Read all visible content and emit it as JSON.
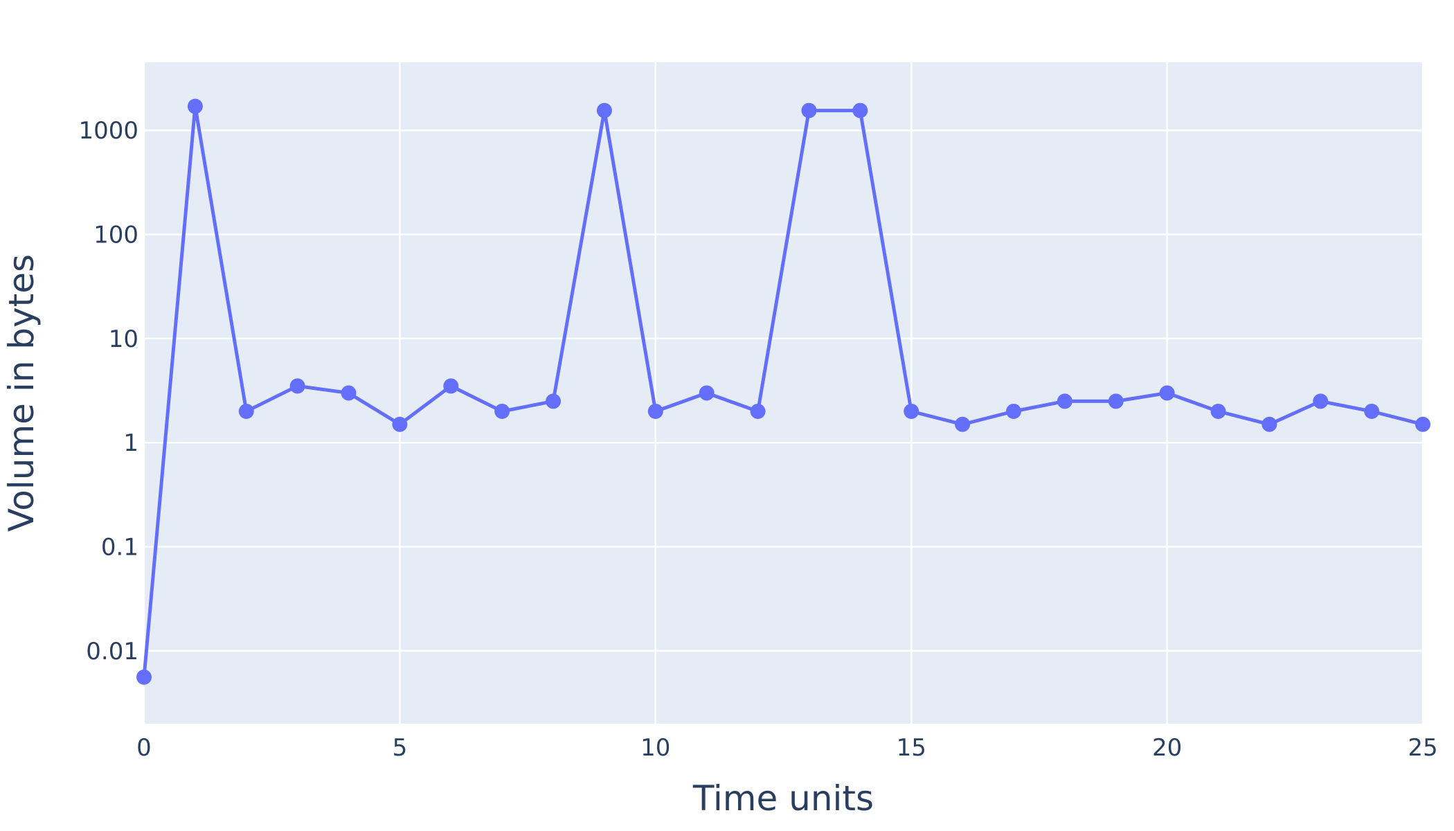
{
  "chart_data": {
    "type": "line",
    "mode": "lines+markers",
    "title": "",
    "xlabel": "Time units",
    "ylabel": "Volume in bytes",
    "x_scale": "linear",
    "y_scale": "log",
    "xlim": [
      0,
      25
    ],
    "ylim": [
      0.002,
      4500
    ],
    "x_ticks": [
      0,
      5,
      10,
      15,
      20,
      25
    ],
    "x_tick_labels": [
      "0",
      "5",
      "10",
      "15",
      "20",
      "25"
    ],
    "y_ticks": [
      0.01,
      0.1,
      1,
      10,
      100,
      1000
    ],
    "y_tick_labels": [
      "0.01",
      "0.1",
      "1",
      "10",
      "100",
      "1000"
    ],
    "grid": true,
    "legend": "none",
    "colors": {
      "plot_bg": "#e5ecf6",
      "grid": "#ffffff",
      "line": "#636efa",
      "text": "#2a3f5f"
    },
    "series": [
      {
        "x": [
          0,
          1,
          2,
          3,
          4,
          5,
          6,
          7,
          8,
          9,
          10,
          11,
          12,
          13,
          14,
          15,
          16,
          17,
          18,
          19,
          20,
          21,
          22,
          23,
          24,
          25
        ],
        "y": [
          0.0056,
          1700,
          2,
          3.5,
          3,
          1.5,
          3.5,
          2,
          2.5,
          1550,
          2,
          3,
          2,
          1550,
          1550,
          2,
          1.5,
          2,
          2.5,
          2.5,
          3,
          2,
          1.5,
          2.5,
          2,
          1.5
        ]
      }
    ]
  }
}
